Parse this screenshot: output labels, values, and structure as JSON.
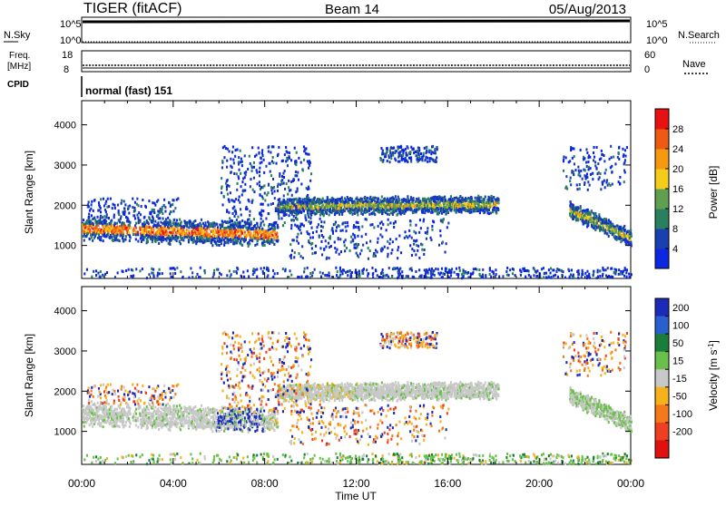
{
  "header": {
    "radar": "TIGER (fitACF)",
    "beam": "Beam 14",
    "date": "05/Aug/2013"
  },
  "noise_panel": {
    "left_label": "N.Sky",
    "right_label": "N.Search",
    "ticks_top": "10^5",
    "ticks_bottom": "10^0"
  },
  "freq_panel": {
    "left_label_1": "Freq.",
    "left_label_2": "[MHz]",
    "right_label": "Nave",
    "left_ticks": [
      "18",
      "8"
    ],
    "right_ticks": [
      "60",
      "0"
    ]
  },
  "cpid_panel": {
    "label": "CPID",
    "text": "normal (fast) 151"
  },
  "chart_data": [
    {
      "type": "heatmap",
      "title": "",
      "xlabel": "Time UT",
      "ylabel": "Slant Range [km]",
      "x_ticks": [
        "00:00",
        "04:00",
        "08:00",
        "12:00",
        "16:00",
        "20:00",
        "00:00"
      ],
      "y_ticks": [
        "1000",
        "2000",
        "3000",
        "4000"
      ],
      "xlim_hours": [
        0,
        24
      ],
      "ylim_km": [
        180,
        4600
      ],
      "colorbar": {
        "label": "Power [dB]",
        "ticks": [
          "4",
          "8",
          "12",
          "16",
          "20",
          "24",
          "28"
        ],
        "colors": [
          "#0b27e0",
          "#1a3fb0",
          "#2a7f5f",
          "#5fa050",
          "#f4cc1a",
          "#f59a10",
          "#ef5a12",
          "#e81010"
        ]
      },
      "scatter_bands": [
        {
          "name": "main-band",
          "t_start": 0,
          "t_end": 8.5,
          "range_start": 1450,
          "range_end": 1300,
          "width": 300
        },
        {
          "name": "upper-band",
          "t_start": 8.5,
          "t_end": 18.2,
          "range_start": 2000,
          "range_end": 2050,
          "width": 220
        },
        {
          "name": "late-band",
          "t_start": 21.3,
          "t_end": 24,
          "range_start": 1900,
          "range_end": 1200,
          "width": 220
        }
      ]
    },
    {
      "type": "heatmap",
      "title": "",
      "xlabel": "Time UT",
      "ylabel": "Slant Range [km]",
      "x_ticks": [
        "00:00",
        "04:00",
        "08:00",
        "12:00",
        "16:00",
        "20:00",
        "00:00"
      ],
      "y_ticks": [
        "1000",
        "2000",
        "3000",
        "4000"
      ],
      "xlim_hours": [
        0,
        24
      ],
      "ylim_km": [
        180,
        4600
      ],
      "colorbar": {
        "label": "Velocity [m s^-1]",
        "ticks": [
          "200",
          "100",
          "50",
          "15",
          "-15",
          "-50",
          "-100",
          "-200"
        ],
        "colors": [
          "#1b2bb8",
          "#2a5fcf",
          "#1a7d3a",
          "#6ac04a",
          "#c8c8c8",
          "#f5b21a",
          "#f5781a",
          "#ee4020",
          "#e01010"
        ]
      }
    }
  ]
}
